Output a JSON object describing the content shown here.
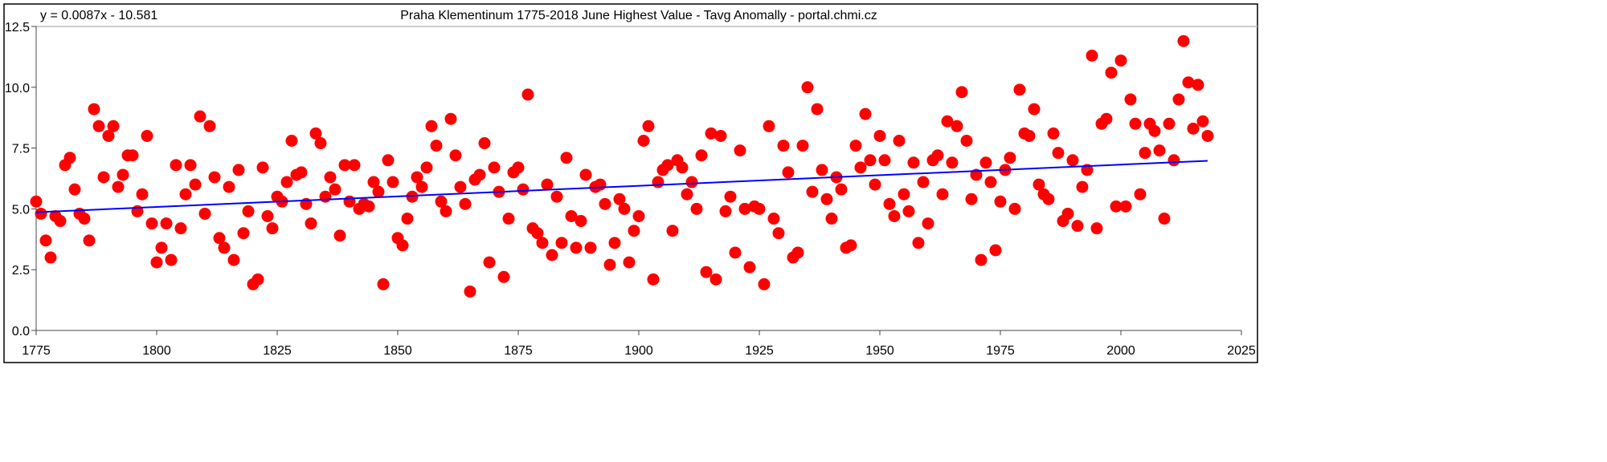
{
  "chart_data": {
    "type": "scatter",
    "title": "Praha Klementinum 1775-2018 June Highest Value - Tavg Anomally - portal.chmi.cz",
    "trendline_label": "y = 0.0087x - 10.581",
    "trendline": {
      "slope": 0.0087,
      "intercept": -10.581,
      "color": "#0000ff"
    },
    "marker_color": "#ff0000",
    "xlabel": "",
    "ylabel": "",
    "xlim": [
      1775,
      2025
    ],
    "ylim": [
      0,
      12.5
    ],
    "xticks": [
      "1775",
      "1800",
      "1825",
      "1850",
      "1875",
      "1900",
      "1925",
      "1950",
      "1975",
      "2000",
      "2025"
    ],
    "yticks": [
      "0.0",
      "2.5",
      "5.0",
      "7.5",
      "10.0",
      "12.5"
    ],
    "grid": "top line only",
    "x_start": 1775,
    "values": [
      5.3,
      4.8,
      3.7,
      3.0,
      4.7,
      4.5,
      6.8,
      7.1,
      5.8,
      4.8,
      4.6,
      3.7,
      9.1,
      8.4,
      6.3,
      8.0,
      8.4,
      5.9,
      6.4,
      7.2,
      7.2,
      4.9,
      5.6,
      8.0,
      4.4,
      2.8,
      3.4,
      4.4,
      2.9,
      6.8,
      4.2,
      5.6,
      6.8,
      6.0,
      8.8,
      4.8,
      8.4,
      6.3,
      3.8,
      3.4,
      5.9,
      2.9,
      6.6,
      4.0,
      4.9,
      1.9,
      2.1,
      6.7,
      4.7,
      4.2,
      5.5,
      5.3,
      6.1,
      7.8,
      6.4,
      6.5,
      5.2,
      4.4,
      8.1,
      7.7,
      5.5,
      6.3,
      5.8,
      3.9,
      6.8,
      5.3,
      6.8,
      5.0,
      5.2,
      5.1,
      6.1,
      5.7,
      1.9,
      7.0,
      6.1,
      3.8,
      3.5,
      4.6,
      5.5,
      6.3,
      5.9,
      6.7,
      8.4,
      7.6,
      5.3,
      4.9,
      8.7,
      7.2,
      5.9,
      5.2,
      1.6,
      6.2,
      6.4,
      7.7,
      2.8,
      6.7,
      5.7,
      2.2,
      4.6,
      6.5,
      6.7,
      5.8,
      9.7,
      4.2,
      4.0,
      3.6,
      6.0,
      3.1,
      5.5,
      3.6,
      7.1,
      4.7,
      3.4,
      4.5,
      6.4,
      3.4,
      5.9,
      6.0,
      5.2,
      2.7,
      3.6,
      5.4,
      5.0,
      2.8,
      4.1,
      4.7,
      7.8,
      8.4,
      2.1,
      6.1,
      6.6,
      6.8,
      4.1,
      7.0,
      6.7,
      5.6,
      6.1,
      5.0,
      7.2,
      2.4,
      8.1,
      2.1,
      8.0,
      4.9,
      5.5,
      3.2,
      7.4,
      5.0,
      2.6,
      5.1,
      5.0,
      1.9,
      8.4,
      4.6,
      4.0,
      7.6,
      6.5,
      3.0,
      3.2,
      7.6,
      10.0,
      5.7,
      9.1,
      6.6,
      5.4,
      4.6,
      6.3,
      5.8,
      3.4,
      3.5,
      7.6,
      6.7,
      8.9,
      7.0,
      6.0,
      8.0,
      7.0,
      5.2,
      4.7,
      7.8,
      5.6,
      4.9,
      6.9,
      3.6,
      6.1,
      4.4,
      7.0,
      7.2,
      5.6,
      8.6,
      6.9,
      8.4,
      9.8,
      7.8,
      5.4,
      6.4,
      2.9,
      6.9,
      6.1,
      3.3,
      5.3,
      6.6,
      7.1,
      5.0,
      9.9,
      8.1,
      8.0,
      9.1,
      6.0,
      5.6,
      5.4,
      8.1,
      7.3,
      4.5,
      4.8,
      7.0,
      4.3,
      5.9,
      6.6,
      11.3,
      4.2,
      8.5,
      8.7,
      10.6,
      5.1,
      11.1,
      5.1,
      9.5,
      8.5,
      5.6,
      7.3,
      8.5,
      8.2,
      7.4,
      4.6,
      8.5,
      7.0,
      9.5,
      11.9,
      10.2,
      8.3,
      10.1,
      8.6,
      8.0
    ]
  }
}
